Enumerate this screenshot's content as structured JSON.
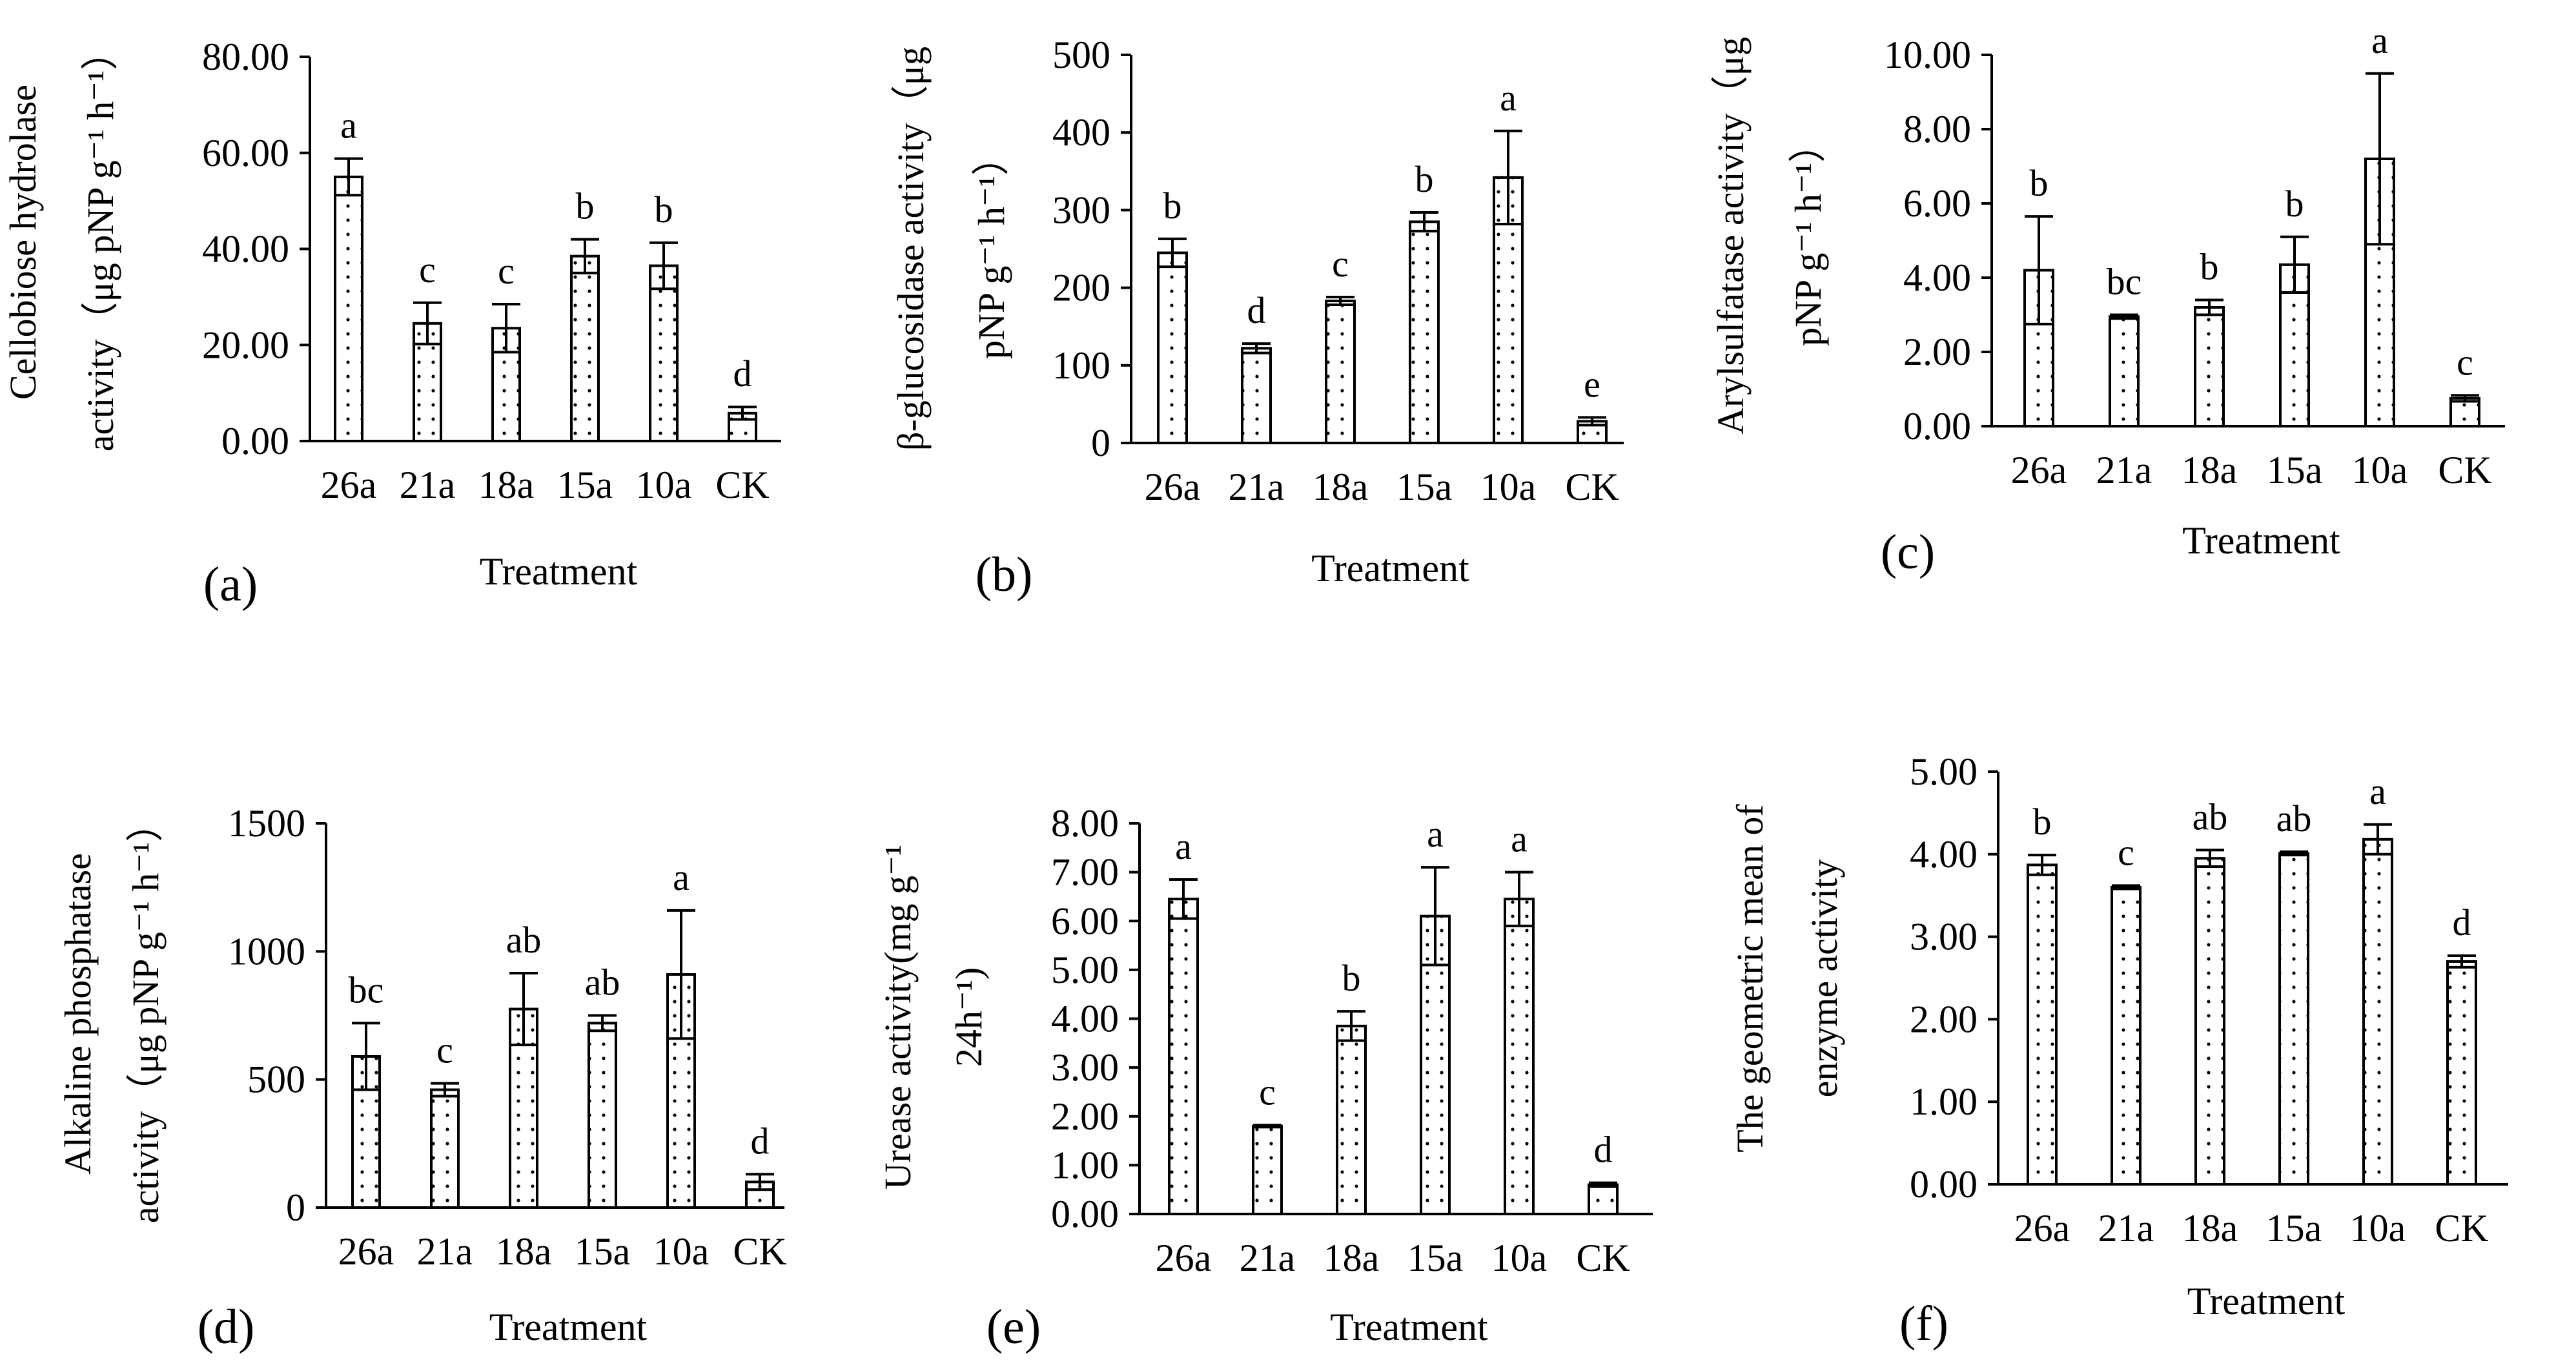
{
  "chart_data": [
    {
      "panel": "(a)",
      "type": "bar",
      "xlabel": "Treatment",
      "ylabel_lines": [
        "Cellobiose hydrolase",
        "activity（μg pNP g⁻¹ h⁻¹）"
      ],
      "categories": [
        "26a",
        "21a",
        "18a",
        "15a",
        "10a",
        "CK"
      ],
      "values": [
        55.0,
        24.5,
        23.5,
        38.5,
        36.5,
        5.8
      ],
      "errors": [
        3.8,
        4.3,
        5.0,
        3.5,
        4.8,
        1.3
      ],
      "letters": [
        "a",
        "c",
        "c",
        "b",
        "b",
        "d"
      ],
      "ylim": [
        0,
        80
      ],
      "yticks": [
        "0.00",
        "20.00",
        "40.00",
        "60.00",
        "80.00"
      ]
    },
    {
      "panel": "(b)",
      "type": "bar",
      "xlabel": "Treatment",
      "ylabel_lines": [
        "β-glucosidase activity（μg",
        "pNP g⁻¹ h⁻¹）"
      ],
      "categories": [
        "26a",
        "21a",
        "18a",
        "15a",
        "10a",
        "CK"
      ],
      "values": [
        245,
        122,
        183,
        285,
        342,
        28
      ],
      "errors": [
        18,
        6,
        5,
        12,
        60,
        5
      ],
      "letters": [
        "b",
        "d",
        "c",
        "b",
        "a",
        "e"
      ],
      "ylim": [
        0,
        500
      ],
      "yticks": [
        "0",
        "100",
        "200",
        "300",
        "400",
        "500"
      ]
    },
    {
      "panel": "(c)",
      "type": "bar",
      "xlabel": "Treatment",
      "ylabel_lines": [
        "Arylsulfatase activity（μg",
        "pNP g⁻¹ h⁻¹）"
      ],
      "categories": [
        "26a",
        "21a",
        "18a",
        "15a",
        "10a",
        "CK"
      ],
      "values": [
        4.2,
        2.95,
        3.2,
        4.35,
        7.2,
        0.75
      ],
      "errors": [
        1.45,
        0.05,
        0.2,
        0.75,
        2.3,
        0.08
      ],
      "letters": [
        "b",
        "bc",
        "b",
        "b",
        "a",
        "c"
      ],
      "ylim": [
        0,
        10
      ],
      "yticks": [
        "0.00",
        "2.00",
        "4.00",
        "6.00",
        "8.00",
        "10.00"
      ]
    },
    {
      "panel": "(d)",
      "type": "bar",
      "xlabel": "Treatment",
      "ylabel_lines": [
        "Alkaline phosphatase",
        "activity（μg pNP g⁻¹ h⁻¹）"
      ],
      "categories": [
        "26a",
        "21a",
        "18a",
        "15a",
        "10a",
        "CK"
      ],
      "values": [
        590,
        460,
        775,
        720,
        910,
        100
      ],
      "errors": [
        130,
        25,
        140,
        30,
        250,
        30
      ],
      "letters": [
        "bc",
        "c",
        "ab",
        "ab",
        "a",
        "d"
      ],
      "ylim": [
        0,
        1500
      ],
      "yticks": [
        "0",
        "500",
        "1000",
        "1500"
      ]
    },
    {
      "panel": "(e)",
      "type": "bar",
      "xlabel": "Treatment",
      "ylabel_lines": [
        "Urease activity(mg g⁻¹",
        "24h⁻¹)"
      ],
      "categories": [
        "26a",
        "21a",
        "18a",
        "15a",
        "10a",
        "CK"
      ],
      "values": [
        6.45,
        1.8,
        3.85,
        6.1,
        6.45,
        0.6
      ],
      "errors": [
        0.4,
        0.02,
        0.3,
        1.0,
        0.55,
        0.04
      ],
      "letters": [
        "a",
        "c",
        "b",
        "a",
        "a",
        "d"
      ],
      "ylim": [
        0,
        8
      ],
      "yticks": [
        "0.00",
        "1.00",
        "2.00",
        "3.00",
        "4.00",
        "5.00",
        "6.00",
        "7.00",
        "8.00"
      ]
    },
    {
      "panel": "(f)",
      "type": "bar",
      "xlabel": "Treatment",
      "ylabel_lines": [
        "The geometric mean of",
        "enzyme activity"
      ],
      "categories": [
        "26a",
        "21a",
        "18a",
        "15a",
        "10a",
        "CK"
      ],
      "values": [
        3.87,
        3.6,
        3.95,
        4.01,
        4.18,
        2.7
      ],
      "errors": [
        0.12,
        0.02,
        0.1,
        0.02,
        0.18,
        0.07
      ],
      "letters": [
        "b",
        "c",
        "ab",
        "ab",
        "a",
        "d"
      ],
      "ylim": [
        0,
        5
      ],
      "yticks": [
        "0.00",
        "1.00",
        "2.00",
        "3.00",
        "4.00",
        "5.00"
      ]
    }
  ]
}
